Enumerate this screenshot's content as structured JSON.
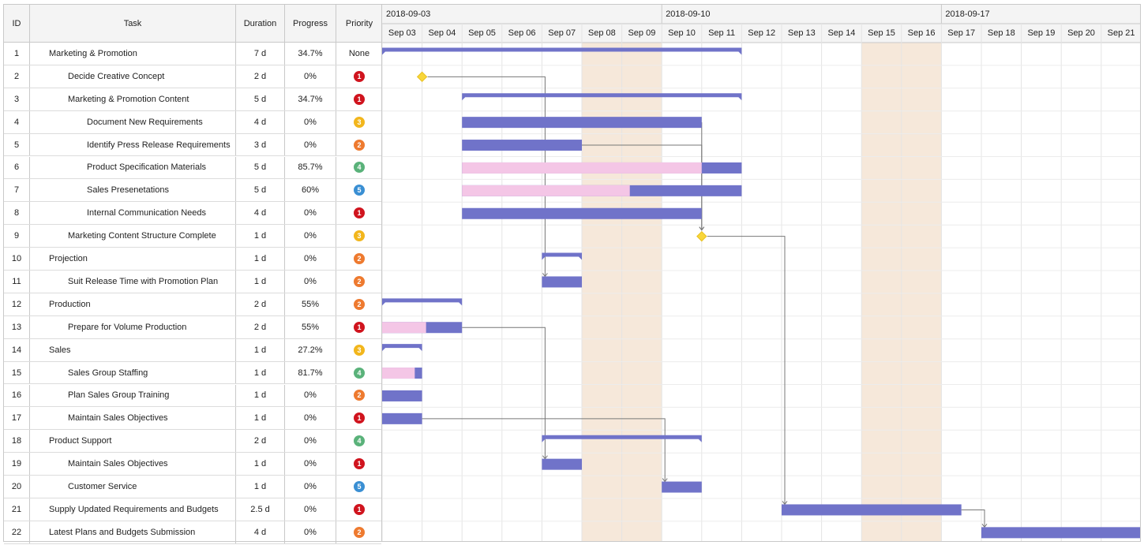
{
  "grid": {
    "columns": {
      "id": "ID",
      "task": "Task",
      "duration": "Duration",
      "progress": "Progress",
      "priority": "Priority"
    },
    "rows": [
      {
        "id": "1",
        "task": "Marketing & Promotion",
        "level": 0,
        "duration": "7 d",
        "progress": "34.7%",
        "priority": "None"
      },
      {
        "id": "2",
        "task": "Decide Creative Concept",
        "level": 1,
        "duration": "2 d",
        "progress": "0%",
        "priority": "1"
      },
      {
        "id": "3",
        "task": "Marketing & Promotion Content",
        "level": 1,
        "duration": "5 d",
        "progress": "34.7%",
        "priority": "1"
      },
      {
        "id": "4",
        "task": "Document New Requirements",
        "level": 2,
        "duration": "4 d",
        "progress": "0%",
        "priority": "3"
      },
      {
        "id": "5",
        "task": "Identify Press Release Requirements",
        "level": 2,
        "duration": "3 d",
        "progress": "0%",
        "priority": "2"
      },
      {
        "id": "6",
        "task": "Product Specification Materials",
        "level": 2,
        "duration": "5 d",
        "progress": "85.7%",
        "priority": "4"
      },
      {
        "id": "7",
        "task": "Sales Presenetations",
        "level": 2,
        "duration": "5 d",
        "progress": "60%",
        "priority": "5"
      },
      {
        "id": "8",
        "task": "Internal Communication Needs",
        "level": 2,
        "duration": "4 d",
        "progress": "0%",
        "priority": "1"
      },
      {
        "id": "9",
        "task": "Marketing Content Structure Complete",
        "level": 1,
        "duration": "1 d",
        "progress": "0%",
        "priority": "3"
      },
      {
        "id": "10",
        "task": "Projection",
        "level": 0,
        "duration": "1 d",
        "progress": "0%",
        "priority": "2"
      },
      {
        "id": "11",
        "task": "Suit Release Time with Promotion Plan",
        "level": 1,
        "duration": "1 d",
        "progress": "0%",
        "priority": "2"
      },
      {
        "id": "12",
        "task": "Production",
        "level": 0,
        "duration": "2 d",
        "progress": "55%",
        "priority": "2"
      },
      {
        "id": "13",
        "task": "Prepare for Volume Production",
        "level": 1,
        "duration": "2 d",
        "progress": "55%",
        "priority": "1"
      },
      {
        "id": "14",
        "task": "Sales",
        "level": 0,
        "duration": "1 d",
        "progress": "27.2%",
        "priority": "3"
      },
      {
        "id": "15",
        "task": "Sales Group Staffing",
        "level": 1,
        "duration": "1 d",
        "progress": "81.7%",
        "priority": "4"
      },
      {
        "id": "16",
        "task": "Plan Sales Group Training",
        "level": 1,
        "duration": "1 d",
        "progress": "0%",
        "priority": "2"
      },
      {
        "id": "17",
        "task": "Maintain Sales Objectives",
        "level": 1,
        "duration": "1 d",
        "progress": "0%",
        "priority": "1"
      },
      {
        "id": "18",
        "task": "Product Support",
        "level": 0,
        "duration": "2 d",
        "progress": "0%",
        "priority": "4"
      },
      {
        "id": "19",
        "task": "Maintain Sales Objectives",
        "level": 1,
        "duration": "1 d",
        "progress": "0%",
        "priority": "1"
      },
      {
        "id": "20",
        "task": "Customer Service",
        "level": 1,
        "duration": "1 d",
        "progress": "0%",
        "priority": "5"
      },
      {
        "id": "21",
        "task": "Supply Updated Requirements and Budgets",
        "level": 0,
        "duration": "2.5 d",
        "progress": "0%",
        "priority": "1"
      },
      {
        "id": "22",
        "task": "Latest Plans and Budgets Submission",
        "level": 0,
        "duration": "4 d",
        "progress": "0%",
        "priority": "2"
      }
    ]
  },
  "priority_colors": {
    "1": "#d0141e",
    "2": "#ee7a2f",
    "3": "#f2b61c",
    "4": "#5ab27a",
    "5": "#3a8fd3"
  },
  "colors": {
    "bar": "#7073c9",
    "progress": "#f4c6e6",
    "milestone": "#f8d63a",
    "weekend": "#f6e8da",
    "link": "#777777"
  },
  "timeline": {
    "weeks": [
      "2018-09-03",
      "2018-09-10",
      "2018-09-17"
    ],
    "days": [
      "Sep 03",
      "Sep 04",
      "Sep 05",
      "Sep 06",
      "Sep 07",
      "Sep 08",
      "Sep 09",
      "Sep 10",
      "Sep 11",
      "Sep 12",
      "Sep 13",
      "Sep 14",
      "Sep 15",
      "Sep 16",
      "Sep 17",
      "Sep 18",
      "Sep 19",
      "Sep 20",
      "Sep 21"
    ],
    "weekend_days": [
      "Sep 08",
      "Sep 09",
      "Sep 15",
      "Sep 16"
    ]
  },
  "gantt_items": [
    {
      "row": 1,
      "type": "summary",
      "start": "2018-09-03",
      "duration": 9.0,
      "progress": 0
    },
    {
      "row": 2,
      "type": "milestone",
      "start": "2018-09-04",
      "duration": 0,
      "progress": 0
    },
    {
      "row": 3,
      "type": "summary",
      "start": "2018-09-05",
      "duration": 7.0,
      "progress": 0
    },
    {
      "row": 4,
      "type": "task",
      "start": "2018-09-05",
      "duration": 6.0,
      "progress": 0
    },
    {
      "row": 5,
      "type": "task",
      "start": "2018-09-05",
      "duration": 3.0,
      "progress": 0
    },
    {
      "row": 6,
      "type": "task",
      "start": "2018-09-05",
      "duration": 7.0,
      "progress": 0.857
    },
    {
      "row": 7,
      "type": "task",
      "start": "2018-09-05",
      "duration": 7.0,
      "progress": 0.6
    },
    {
      "row": 8,
      "type": "task",
      "start": "2018-09-05",
      "duration": 6.0,
      "progress": 0
    },
    {
      "row": 9,
      "type": "milestone",
      "start": "2018-09-11",
      "duration": 0,
      "progress": 0
    },
    {
      "row": 10,
      "type": "summary",
      "start": "2018-09-07",
      "duration": 1.0,
      "progress": 0
    },
    {
      "row": 11,
      "type": "task",
      "start": "2018-09-07",
      "duration": 1.0,
      "progress": 0
    },
    {
      "row": 12,
      "type": "summary",
      "start": "2018-09-03",
      "duration": 2.0,
      "progress": 0
    },
    {
      "row": 13,
      "type": "task",
      "start": "2018-09-03",
      "duration": 2.0,
      "progress": 0.55
    },
    {
      "row": 14,
      "type": "summary",
      "start": "2018-09-03",
      "duration": 1.0,
      "progress": 0
    },
    {
      "row": 15,
      "type": "task",
      "start": "2018-09-03",
      "duration": 1.0,
      "progress": 0.817
    },
    {
      "row": 16,
      "type": "task",
      "start": "2018-09-03",
      "duration": 1.0,
      "progress": 0
    },
    {
      "row": 17,
      "type": "task",
      "start": "2018-09-03",
      "duration": 1.0,
      "progress": 0
    },
    {
      "row": 18,
      "type": "summary",
      "start": "2018-09-07",
      "duration": 4.0,
      "progress": 0
    },
    {
      "row": 19,
      "type": "task",
      "start": "2018-09-07",
      "duration": 1.0,
      "progress": 0
    },
    {
      "row": 20,
      "type": "task",
      "start": "2018-09-10",
      "duration": 1.0,
      "progress": 0
    },
    {
      "row": 21,
      "type": "task",
      "start": "2018-09-13",
      "duration": 4.5,
      "progress": 0
    },
    {
      "row": 22,
      "type": "task",
      "start": "2018-09-18",
      "duration": 4.0,
      "progress": 0
    }
  ],
  "links": [
    {
      "from": 2,
      "to": 11
    },
    {
      "from": 4,
      "to": 9
    },
    {
      "from": 5,
      "to": 9
    },
    {
      "from": 13,
      "to": 19
    },
    {
      "from": 17,
      "to": 20
    },
    {
      "from": 9,
      "to": 21
    },
    {
      "from": 21,
      "to": 22
    }
  ]
}
